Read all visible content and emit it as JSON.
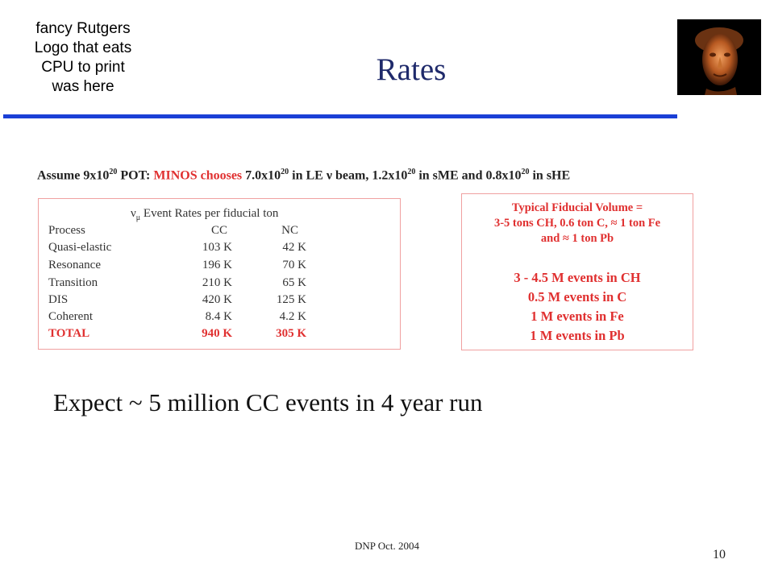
{
  "logo_placeholder": [
    "fancy Rutgers",
    "Logo that eats",
    "CPU to print",
    "was here"
  ],
  "title": "Rates",
  "assume": {
    "t1": "Assume 9x10",
    "s1": "20",
    "t2": " POT: ",
    "t3": "MINOS chooses",
    "t4": " 7.0x10",
    "s2": "20",
    "t5": " in LE ν beam, 1.2x10",
    "s3": "20",
    "t6": " in sME and 0.8x10",
    "s4": "20",
    "t7": " in sHE"
  },
  "rate_table": {
    "heading_nu": "ν",
    "heading_sub": "μ",
    "heading_rest": " Event Rates per fiducial ton",
    "columns": [
      "Process",
      "CC",
      "NC"
    ],
    "rows": [
      {
        "process": "Quasi-elastic",
        "cc": "103 K",
        "nc": "42 K"
      },
      {
        "process": "Resonance",
        "cc": "196 K",
        "nc": "70 K"
      },
      {
        "process": "Transition",
        "cc": "210 K",
        "nc": "65 K"
      },
      {
        "process": "DIS",
        "cc": "420 K",
        "nc": "125 K"
      },
      {
        "process": "Coherent",
        "cc": "8.4 K",
        "nc": "4.2 K"
      }
    ],
    "total": {
      "process": "TOTAL",
      "cc": "940 K",
      "nc": "305 K"
    }
  },
  "fiducial": {
    "header_lines": [
      "Typical Fiducial Volume =",
      "3-5 tons CH,  0.6 ton C, ≈ 1 ton Fe",
      "and ≈ 1 ton Pb"
    ],
    "event_lines": [
      "3 - 4.5 M events in CH",
      "0.5 M events in C",
      "1 M events in Fe",
      "1 M events in Pb"
    ]
  },
  "expect": "Expect ~ 5 million CC events in 4 year run",
  "footer": "DNP Oct. 2004",
  "page_number": "10",
  "colors": {
    "title": "#1f2a6b",
    "rule": "#1a3fd6",
    "highlight": "#e03030",
    "box_border": "#f0a0a0"
  }
}
